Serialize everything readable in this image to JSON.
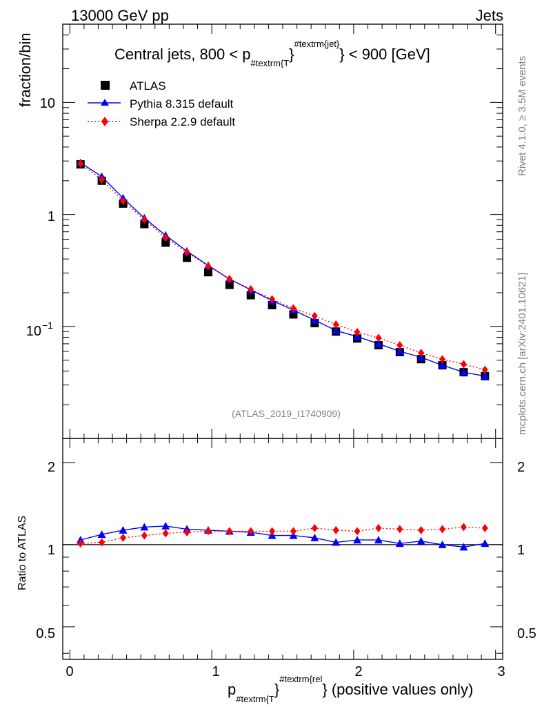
{
  "header": {
    "left": "13000 GeV pp",
    "right": "Jets",
    "side_top": "Rivet 4.1.0, ≥ 3.5M events",
    "side_bottom": "mcplots.cern.ch [arXiv:2401.10621]",
    "watermark": "(ATLAS_2019_I1740909)"
  },
  "title": {
    "pre": "Central jets, 800 < p",
    "sub": "#textrm{T",
    "brace": "}",
    "sup": "#textrm{jet}",
    "brace2": "}",
    "post": " < 900 [GeV]"
  },
  "legend": {
    "data": "ATLAS",
    "pythia": "Pythia 8.315 default",
    "sherpa": "Sherpa 2.2.9 default"
  },
  "axes": {
    "ylabel_main": "fraction/bin",
    "ylabel_ratio": "Ratio to ATLAS",
    "xlabel_p": "p",
    "xlabel_sub": "#textrm{T",
    "xlabel_brace": "}",
    "xlabel_sup": "#textrm{rel",
    "xlabel_brace2": "}",
    "xlabel_post": " (positive values only)",
    "main_tick_10": "10",
    "main_tick_1": "1",
    "main_tick_01_base": "10",
    "main_tick_01_exp": "−1",
    "ratio_ticks": [
      "2",
      "1",
      "0.5"
    ],
    "x_ticks": [
      "0",
      "1",
      "2",
      "3"
    ]
  },
  "colors": {
    "data": "#000000",
    "pythia": "#0000ff",
    "sherpa": "#ff0000",
    "gray": "#808080"
  },
  "chart_data": {
    "type": "line",
    "xlim": [
      -0.05,
      3.05
    ],
    "ylim_main": [
      0.01,
      50
    ],
    "yscale_main": "log",
    "ylim_ratio": [
      0.38,
      2.45
    ],
    "yscale_ratio": "log",
    "x": [
      0.075,
      0.225,
      0.375,
      0.525,
      0.675,
      0.825,
      0.975,
      1.125,
      1.275,
      1.425,
      1.575,
      1.725,
      1.875,
      2.025,
      2.175,
      2.325,
      2.475,
      2.625,
      2.775,
      2.925
    ],
    "series": [
      {
        "name": "ATLAS",
        "values": [
          2.8,
          2.0,
          1.25,
          0.82,
          0.56,
          0.41,
          0.305,
          0.235,
          0.19,
          0.155,
          0.128,
          0.107,
          0.09,
          0.078,
          0.068,
          0.059,
          0.051,
          0.045,
          0.039,
          0.036
        ]
      },
      {
        "name": "Pythia 8.315 default",
        "values": [
          2.9,
          2.18,
          1.4,
          0.93,
          0.65,
          0.47,
          0.35,
          0.265,
          0.212,
          0.17,
          0.14,
          0.114,
          0.092,
          0.081,
          0.07,
          0.06,
          0.053,
          0.045,
          0.039,
          0.036
        ]
      },
      {
        "name": "Sherpa 2.2.9 default",
        "values": [
          2.85,
          2.05,
          1.32,
          0.9,
          0.62,
          0.46,
          0.345,
          0.265,
          0.215,
          0.175,
          0.145,
          0.124,
          0.104,
          0.089,
          0.079,
          0.068,
          0.058,
          0.051,
          0.046,
          0.041
        ]
      }
    ],
    "ratio": [
      {
        "name": "Pythia 8.315 default",
        "values": [
          1.04,
          1.09,
          1.13,
          1.16,
          1.17,
          1.14,
          1.13,
          1.12,
          1.11,
          1.08,
          1.08,
          1.06,
          1.02,
          1.04,
          1.04,
          1.01,
          1.03,
          1.0,
          0.98,
          1.01
        ]
      },
      {
        "name": "Sherpa 2.2.9 default",
        "values": [
          1.01,
          1.02,
          1.06,
          1.08,
          1.1,
          1.11,
          1.12,
          1.12,
          1.12,
          1.12,
          1.12,
          1.15,
          1.13,
          1.12,
          1.15,
          1.14,
          1.13,
          1.14,
          1.16,
          1.15
        ]
      }
    ]
  }
}
